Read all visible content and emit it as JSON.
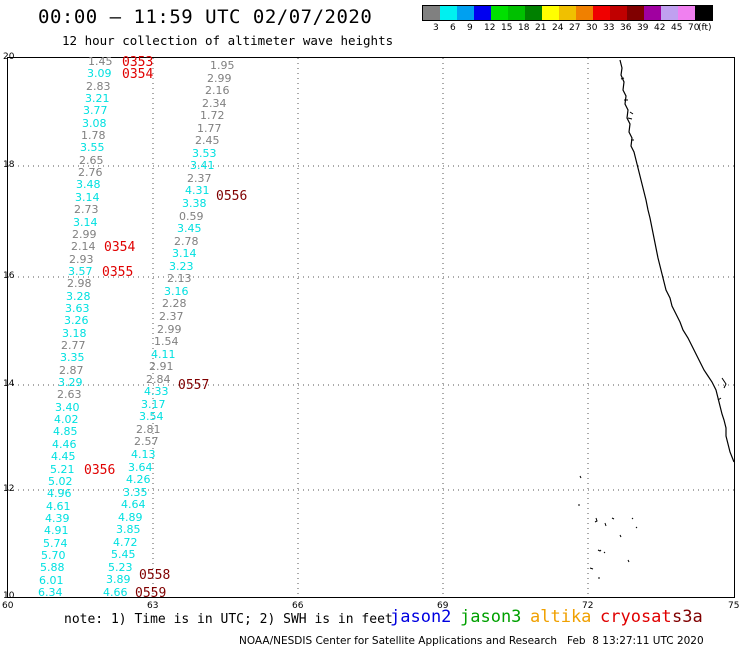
{
  "title": "00:00 – 11:59 UTC 02/07/2020",
  "subtitle": "12 hour collection of altimeter wave heights",
  "legend": {
    "colors": [
      "#808080",
      "#00f0f0",
      "#00a0f0",
      "#0000f0",
      "#00e000",
      "#00c000",
      "#008000",
      "#ffff00",
      "#f0c000",
      "#f08000",
      "#f00000",
      "#c00000",
      "#800000",
      "#a000a0",
      "#c0a0f0",
      "#f080f0",
      "#000000"
    ],
    "labels": [
      "3",
      "6",
      "9",
      "12",
      "15",
      "18",
      "21",
      "24",
      "27",
      "30",
      "33",
      "36",
      "39",
      "42",
      "45",
      "70",
      "(ft)"
    ]
  },
  "axes": {
    "x_ticks": [
      "60",
      "63",
      "66",
      "69",
      "72",
      "75"
    ],
    "y_ticks": [
      "10",
      "12",
      "14",
      "16",
      "18",
      "20"
    ],
    "xlim": [
      60,
      75
    ],
    "ylim": [
      10,
      20
    ]
  },
  "tracks": [
    {
      "id": "track-a",
      "values": [
        {
          "v": "1.45",
          "c": "#808080"
        },
        {
          "v": "3.09",
          "c": "#00e0e0"
        },
        {
          "v": "2.83",
          "c": "#808080"
        },
        {
          "v": "3.21",
          "c": "#00e0e0"
        },
        {
          "v": "3.77",
          "c": "#00e0e0"
        },
        {
          "v": "3.08",
          "c": "#00e0e0"
        },
        {
          "v": "1.78",
          "c": "#808080"
        },
        {
          "v": "3.55",
          "c": "#00e0e0"
        },
        {
          "v": "2.65",
          "c": "#808080"
        },
        {
          "v": "2.76",
          "c": "#808080"
        },
        {
          "v": "3.48",
          "c": "#00e0e0"
        },
        {
          "v": "3.14",
          "c": "#00e0e0"
        },
        {
          "v": "2.73",
          "c": "#808080"
        },
        {
          "v": "3.14",
          "c": "#00e0e0"
        },
        {
          "v": "2.99",
          "c": "#808080"
        },
        {
          "v": "2.14",
          "c": "#808080"
        },
        {
          "v": "2.93",
          "c": "#808080"
        },
        {
          "v": "3.57",
          "c": "#00e0e0"
        },
        {
          "v": "2.98",
          "c": "#808080"
        },
        {
          "v": "3.28",
          "c": "#00e0e0"
        },
        {
          "v": "3.63",
          "c": "#00e0e0"
        },
        {
          "v": "3.26",
          "c": "#00e0e0"
        },
        {
          "v": "3.18",
          "c": "#00e0e0"
        },
        {
          "v": "2.77",
          "c": "#808080"
        },
        {
          "v": "3.35",
          "c": "#00e0e0"
        },
        {
          "v": "2.87",
          "c": "#808080"
        },
        {
          "v": "3.29",
          "c": "#00e0e0"
        },
        {
          "v": "2.63",
          "c": "#808080"
        },
        {
          "v": "3.40",
          "c": "#00e0e0"
        },
        {
          "v": "4.02",
          "c": "#00e0e0"
        },
        {
          "v": "4.85",
          "c": "#00e0e0"
        },
        {
          "v": "4.46",
          "c": "#00e0e0"
        },
        {
          "v": "4.45",
          "c": "#00e0e0"
        },
        {
          "v": "5.21",
          "c": "#00e0e0"
        },
        {
          "v": "5.02",
          "c": "#00e0e0"
        },
        {
          "v": "4.96",
          "c": "#00e0e0"
        },
        {
          "v": "4.61",
          "c": "#00e0e0"
        },
        {
          "v": "4.39",
          "c": "#00e0e0"
        },
        {
          "v": "4.91",
          "c": "#00e0e0"
        },
        {
          "v": "5.74",
          "c": "#00e0e0"
        },
        {
          "v": "5.70",
          "c": "#00e0e0"
        },
        {
          "v": "5.88",
          "c": "#00e0e0"
        },
        {
          "v": "6.01",
          "c": "#00e0e0"
        },
        {
          "v": "6.34",
          "c": "#00e0e0"
        }
      ]
    },
    {
      "id": "track-b",
      "values": [
        {
          "v": "1.95",
          "c": "#808080"
        },
        {
          "v": "2.99",
          "c": "#808080"
        },
        {
          "v": "2.16",
          "c": "#808080"
        },
        {
          "v": "2.34",
          "c": "#808080"
        },
        {
          "v": "1.72",
          "c": "#808080"
        },
        {
          "v": "1.77",
          "c": "#808080"
        },
        {
          "v": "2.45",
          "c": "#808080"
        },
        {
          "v": "3.53",
          "c": "#00e0e0"
        },
        {
          "v": "3.41",
          "c": "#00e0e0"
        },
        {
          "v": "2.37",
          "c": "#808080"
        },
        {
          "v": "4.31",
          "c": "#00e0e0"
        },
        {
          "v": "3.38",
          "c": "#00e0e0"
        },
        {
          "v": "0.59",
          "c": "#808080"
        },
        {
          "v": "3.45",
          "c": "#00e0e0"
        },
        {
          "v": "2.78",
          "c": "#808080"
        },
        {
          "v": "3.14",
          "c": "#00e0e0"
        },
        {
          "v": "3.23",
          "c": "#00e0e0"
        },
        {
          "v": "2.13",
          "c": "#808080"
        },
        {
          "v": "3.16",
          "c": "#00e0e0"
        },
        {
          "v": "2.28",
          "c": "#808080"
        },
        {
          "v": "2.37",
          "c": "#808080"
        },
        {
          "v": "2.99",
          "c": "#808080"
        },
        {
          "v": "1.54",
          "c": "#808080"
        },
        {
          "v": "4.11",
          "c": "#00e0e0"
        },
        {
          "v": "2.91",
          "c": "#808080"
        },
        {
          "v": "2.84",
          "c": "#808080"
        },
        {
          "v": "4.33",
          "c": "#00e0e0"
        },
        {
          "v": "3.17",
          "c": "#00e0e0"
        },
        {
          "v": "3.54",
          "c": "#00e0e0"
        },
        {
          "v": "2.81",
          "c": "#808080"
        },
        {
          "v": "2.57",
          "c": "#808080"
        },
        {
          "v": "4.13",
          "c": "#00e0e0"
        },
        {
          "v": "3.64",
          "c": "#00e0e0"
        },
        {
          "v": "4.26",
          "c": "#00e0e0"
        },
        {
          "v": "3.35",
          "c": "#00e0e0"
        },
        {
          "v": "4.64",
          "c": "#00e0e0"
        },
        {
          "v": "4.89",
          "c": "#00e0e0"
        },
        {
          "v": "3.85",
          "c": "#00e0e0"
        },
        {
          "v": "4.72",
          "c": "#00e0e0"
        },
        {
          "v": "5.45",
          "c": "#00e0e0"
        },
        {
          "v": "5.23",
          "c": "#00e0e0"
        },
        {
          "v": "3.89",
          "c": "#00e0e0"
        },
        {
          "v": "4.66",
          "c": "#00e0e0"
        }
      ]
    }
  ],
  "times": [
    {
      "t": "0353",
      "c": "#e00000"
    },
    {
      "t": "0354",
      "c": "#e00000"
    },
    {
      "t": "0354",
      "c": "#e00000"
    },
    {
      "t": "0355",
      "c": "#e00000"
    },
    {
      "t": "0356",
      "c": "#e00000"
    },
    {
      "t": "0556",
      "c": "#800000"
    },
    {
      "t": "0557",
      "c": "#800000"
    },
    {
      "t": "0558",
      "c": "#800000"
    },
    {
      "t": "0559",
      "c": "#800000"
    }
  ],
  "note": "note: 1) Time is in UTC; 2) SWH is in feet",
  "satellites": [
    {
      "name": "jason2",
      "color": "#0000e0"
    },
    {
      "name": "jason3",
      "color": "#00a000"
    },
    {
      "name": "altika",
      "color": "#f0a000"
    },
    {
      "name": "cryosat",
      "color": "#e00000"
    },
    {
      "name": "s3a",
      "color": "#800000"
    }
  ],
  "footer": "NOAA/NESDIS Center for Satellite Applications and Research   Feb  8 13:27:11 UTC 2020"
}
